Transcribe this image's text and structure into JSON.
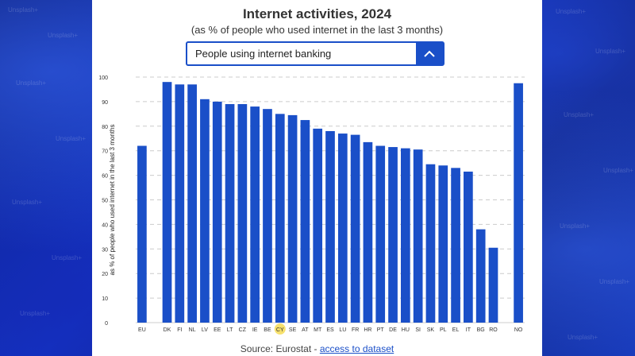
{
  "header": {
    "title": "Internet activities, 2024",
    "subtitle": "(as % of people who used internet in the last 3 months)"
  },
  "dropdown": {
    "selected": "People using internet banking",
    "icon": "chevron-up-icon"
  },
  "source": {
    "prefix": "Source: Eurostat - ",
    "link": "access to dataset"
  },
  "watermark": {
    "text": "Unsplash+"
  },
  "colors": {
    "bar": "#1a4fc8",
    "highlight": "#f5d94a",
    "panel": "#ffffff"
  },
  "chart_data": {
    "type": "bar",
    "ylabel": "as % of people who used internet in the last 3 months",
    "ylim": [
      0,
      100
    ],
    "yticks": [
      0,
      10,
      20,
      30,
      40,
      50,
      60,
      70,
      80,
      90,
      100
    ],
    "grid": true,
    "highlighted_category": "CY",
    "categories": [
      "EU",
      "",
      "DK",
      "FI",
      "NL",
      "LV",
      "EE",
      "LT",
      "CZ",
      "IE",
      "BE",
      "CY",
      "SE",
      "AT",
      "MT",
      "ES",
      "LU",
      "FR",
      "HR",
      "PT",
      "DE",
      "HU",
      "SI",
      "SK",
      "PL",
      "EL",
      "IT",
      "BG",
      "RO",
      "",
      "NO"
    ],
    "values": [
      72,
      null,
      98,
      97,
      97,
      91,
      90,
      89,
      89,
      88,
      87,
      85,
      84.5,
      82.5,
      79,
      78,
      77,
      76.5,
      73.5,
      72,
      71.5,
      71,
      70.5,
      64.5,
      64,
      63,
      61.5,
      38,
      30.5,
      null,
      97.5
    ]
  }
}
